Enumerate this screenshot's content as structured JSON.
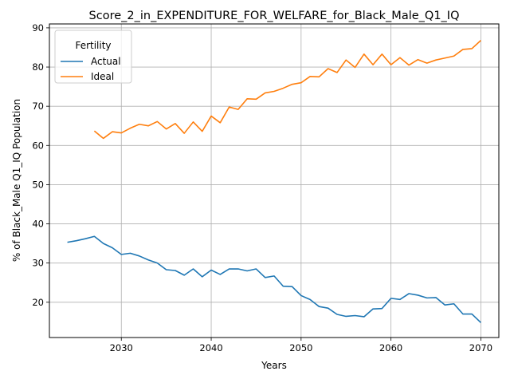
{
  "chart_data": {
    "type": "line",
    "title": "Score_2_in_EXPENDITURE_FOR_WELFARE_for_Black_Male_Q1_IQ",
    "xlabel": "Years",
    "ylabel": "% of Black_Male Q1_IQ Population",
    "xlim": [
      2022,
      2072
    ],
    "ylim": [
      11,
      91
    ],
    "x_ticks": [
      2030,
      2040,
      2050,
      2060,
      2070
    ],
    "y_ticks": [
      20,
      30,
      40,
      50,
      60,
      70,
      80,
      90
    ],
    "grid": true,
    "legend": {
      "title": "Fertility",
      "position": "top-left"
    },
    "series": [
      {
        "name": "Actual",
        "color": "#1f77b4",
        "x": [
          2024,
          2025,
          2026,
          2027,
          2028,
          2029,
          2030,
          2031,
          2032,
          2033,
          2034,
          2035,
          2036,
          2037,
          2038,
          2039,
          2040,
          2041,
          2042,
          2043,
          2044,
          2045,
          2046,
          2047,
          2048,
          2049,
          2050,
          2051,
          2052,
          2053,
          2054,
          2055,
          2056,
          2057,
          2058,
          2059,
          2060,
          2061,
          2062,
          2063,
          2064,
          2065,
          2066,
          2067,
          2068,
          2069,
          2070
        ],
        "values": [
          35.3,
          35.7,
          36.2,
          36.8,
          35.0,
          33.9,
          32.2,
          32.5,
          31.8,
          30.8,
          30.0,
          28.3,
          28.1,
          26.9,
          28.5,
          26.5,
          28.2,
          27.1,
          28.5,
          28.5,
          28.0,
          28.5,
          26.3,
          26.7,
          24.1,
          24.0,
          21.7,
          20.7,
          18.9,
          18.5,
          16.9,
          16.4,
          16.6,
          16.3,
          18.3,
          18.4,
          21.0,
          20.7,
          22.2,
          21.8,
          21.1,
          21.2,
          19.3,
          19.6,
          17.0,
          17.0,
          14.8
        ]
      },
      {
        "name": "Ideal",
        "color": "#ff7f0e",
        "x": [
          2027,
          2028,
          2029,
          2030,
          2031,
          2032,
          2033,
          2034,
          2035,
          2036,
          2037,
          2038,
          2039,
          2040,
          2041,
          2042,
          2043,
          2044,
          2045,
          2046,
          2047,
          2048,
          2049,
          2050,
          2051,
          2052,
          2053,
          2054,
          2055,
          2056,
          2057,
          2058,
          2059,
          2060,
          2061,
          2062,
          2063,
          2064,
          2065,
          2066,
          2067,
          2068,
          2069,
          2070
        ],
        "values": [
          63.7,
          61.8,
          63.5,
          63.2,
          64.4,
          65.4,
          65.0,
          66.1,
          64.2,
          65.6,
          63.1,
          66.0,
          63.6,
          67.5,
          65.8,
          69.8,
          69.2,
          71.9,
          71.8,
          73.4,
          73.8,
          74.6,
          75.6,
          76.0,
          77.6,
          77.5,
          79.6,
          78.6,
          81.8,
          79.9,
          83.3,
          80.6,
          83.3,
          80.6,
          82.4,
          80.5,
          81.9,
          81.0,
          81.8,
          82.3,
          82.8,
          84.5,
          84.7,
          86.8
        ]
      }
    ]
  }
}
